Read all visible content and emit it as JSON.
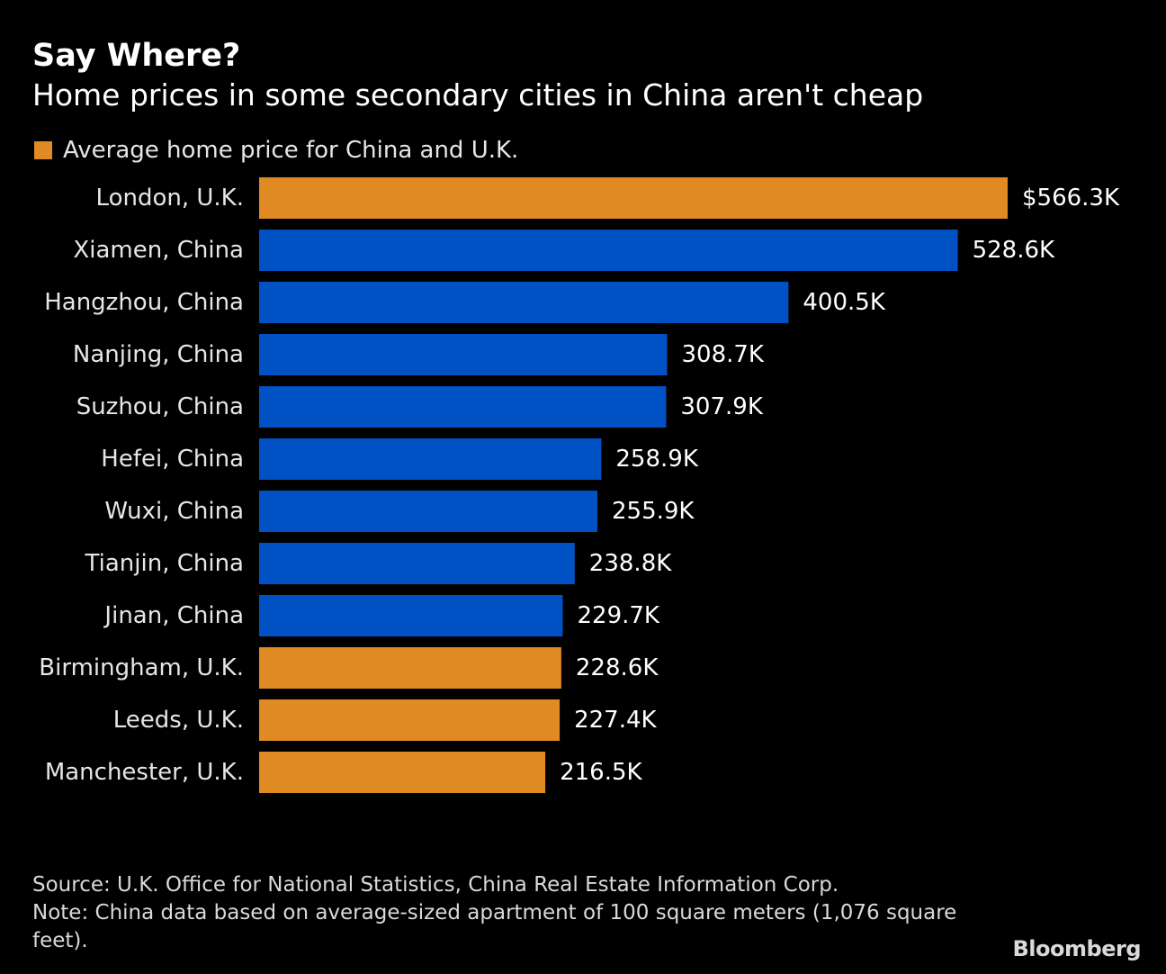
{
  "header": {
    "title": "Say Where?",
    "subtitle": "Home prices in some secondary cities in China aren't cheap"
  },
  "legend": {
    "label": "Average home price for China and U.K.",
    "color": "#E08A24"
  },
  "colors": {
    "uk": "#E08A24",
    "china": "#0052C4",
    "background": "#000000"
  },
  "chart_data": {
    "type": "bar",
    "orientation": "horizontal",
    "title": "Say Where?",
    "subtitle": "Home prices in some secondary cities in China aren't cheap",
    "xlabel": "",
    "ylabel": "",
    "grid": false,
    "legend_position": "top-left",
    "xlim": [
      0,
      566.3
    ],
    "categories": [
      "London, U.K.",
      "Xiamen, China",
      "Hangzhou, China",
      "Nanjing, China",
      "Suzhou, China",
      "Hefei, China",
      "Wuxi, China",
      "Tianjin, China",
      "Jinan, China",
      "Birmingham, U.K.",
      "Leeds, U.K.",
      "Manchester, U.K."
    ],
    "values": [
      566.3,
      528.6,
      400.5,
      308.7,
      307.9,
      258.9,
      255.9,
      238.8,
      229.7,
      228.6,
      227.4,
      216.5
    ],
    "value_labels": [
      "$566.3K",
      "528.6K",
      "400.5K",
      "308.7K",
      "307.9K",
      "258.9K",
      "255.9K",
      "238.8K",
      "229.7K",
      "228.6K",
      "227.4K",
      "216.5K"
    ],
    "groups": [
      "uk",
      "china",
      "china",
      "china",
      "china",
      "china",
      "china",
      "china",
      "china",
      "uk",
      "uk",
      "uk"
    ]
  },
  "footer": {
    "source": "Source: U.K. Office for National Statistics, China Real Estate Information Corp.",
    "note": "Note: China data based on average-sized apartment of 100 square meters (1,076 square feet).",
    "brand": "Bloomberg"
  }
}
